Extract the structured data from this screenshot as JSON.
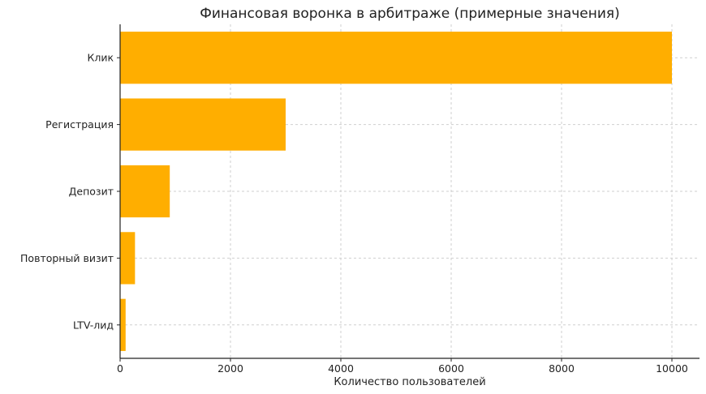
{
  "chart_data": {
    "type": "bar",
    "orientation": "horizontal",
    "title": "Финансовая воронка в арбитраже (примерные значения)",
    "xlabel": "Количество пользователей",
    "ylabel": "",
    "categories": [
      "Клик",
      "Регистрация",
      "Депозит",
      "Повторный визит",
      "LTV-лид"
    ],
    "values": [
      10000,
      3000,
      900,
      270,
      100
    ],
    "xlim": [
      0,
      10500
    ],
    "xticks": [
      "0",
      "2000",
      "4000",
      "6000",
      "8000",
      "10000"
    ],
    "bar_color": "#FFAE00",
    "grid": true
  }
}
